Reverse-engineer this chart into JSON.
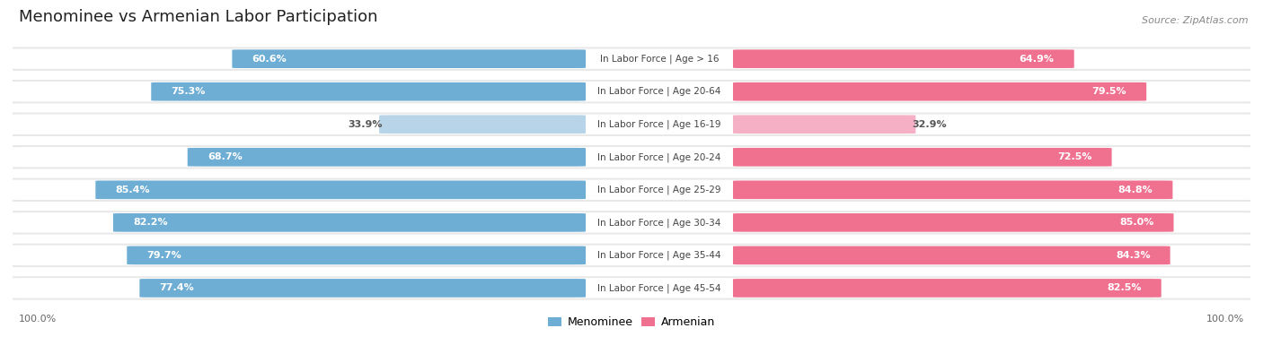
{
  "title": "Menominee vs Armenian Labor Participation",
  "source": "Source: ZipAtlas.com",
  "categories": [
    "In Labor Force | Age > 16",
    "In Labor Force | Age 20-64",
    "In Labor Force | Age 16-19",
    "In Labor Force | Age 20-24",
    "In Labor Force | Age 25-29",
    "In Labor Force | Age 30-34",
    "In Labor Force | Age 35-44",
    "In Labor Force | Age 45-54"
  ],
  "menominee_values": [
    60.6,
    75.3,
    33.9,
    68.7,
    85.4,
    82.2,
    79.7,
    77.4
  ],
  "armenian_values": [
    64.9,
    79.5,
    32.9,
    72.5,
    84.8,
    85.0,
    84.3,
    82.5
  ],
  "menominee_color": "#6eadd4",
  "armenian_color": "#f07090",
  "menominee_color_light": "#b8d4e8",
  "armenian_color_light": "#f5b0c5",
  "row_bg_color": "#e8e8e8",
  "text_color_white": "#ffffff",
  "text_color_dark": "#555555",
  "max_value": 100.0,
  "figsize": [
    14.06,
    3.95
  ],
  "dpi": 100,
  "title_fontsize": 13,
  "source_fontsize": 8,
  "label_fontsize": 8,
  "value_fontsize": 8
}
